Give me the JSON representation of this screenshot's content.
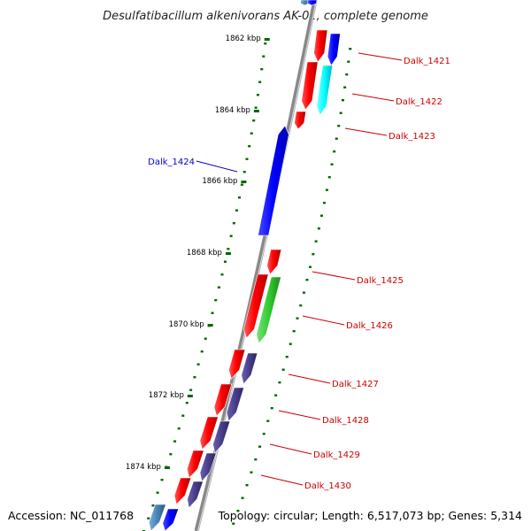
{
  "title": "Desulfatibacillum alkenivorans AK-01, complete genome",
  "footer": {
    "accession": "Accession: NC_011768",
    "summary": "Topology: circular; Length: 6,517,073 bp; Genes: 5,314"
  },
  "axis_ticks": [
    "1862 kbp",
    "1864 kbp",
    "1866 kbp",
    "1868 kbp",
    "1870 kbp",
    "1872 kbp",
    "1874 kbp"
  ],
  "gene_labels": [
    {
      "text": "Dalk_1421",
      "side": "right",
      "color": "#cc0000"
    },
    {
      "text": "Dalk_1422",
      "side": "right",
      "color": "#cc0000"
    },
    {
      "text": "Dalk_1423",
      "side": "right",
      "color": "#cc0000"
    },
    {
      "text": "Dalk_1424",
      "side": "left",
      "color": "#0000cc"
    },
    {
      "text": "Dalk_1425",
      "side": "right",
      "color": "#cc0000"
    },
    {
      "text": "Dalk_1426",
      "side": "right",
      "color": "#cc0000"
    },
    {
      "text": "Dalk_1427",
      "side": "right",
      "color": "#cc0000"
    },
    {
      "text": "Dalk_1428",
      "side": "right",
      "color": "#cc0000"
    },
    {
      "text": "Dalk_1429",
      "side": "right",
      "color": "#cc0000"
    },
    {
      "text": "Dalk_1430",
      "side": "right",
      "color": "#cc0000"
    }
  ],
  "colors": {
    "cds": "#ff0000",
    "orf_blue": "#0000ff",
    "orf_cyan": "#00ffff",
    "orf_green": "#33cc33",
    "orf_slate": "#483d8b",
    "orf_steel": "#4682b4",
    "backbone": "#888888",
    "tick": "#006600"
  }
}
